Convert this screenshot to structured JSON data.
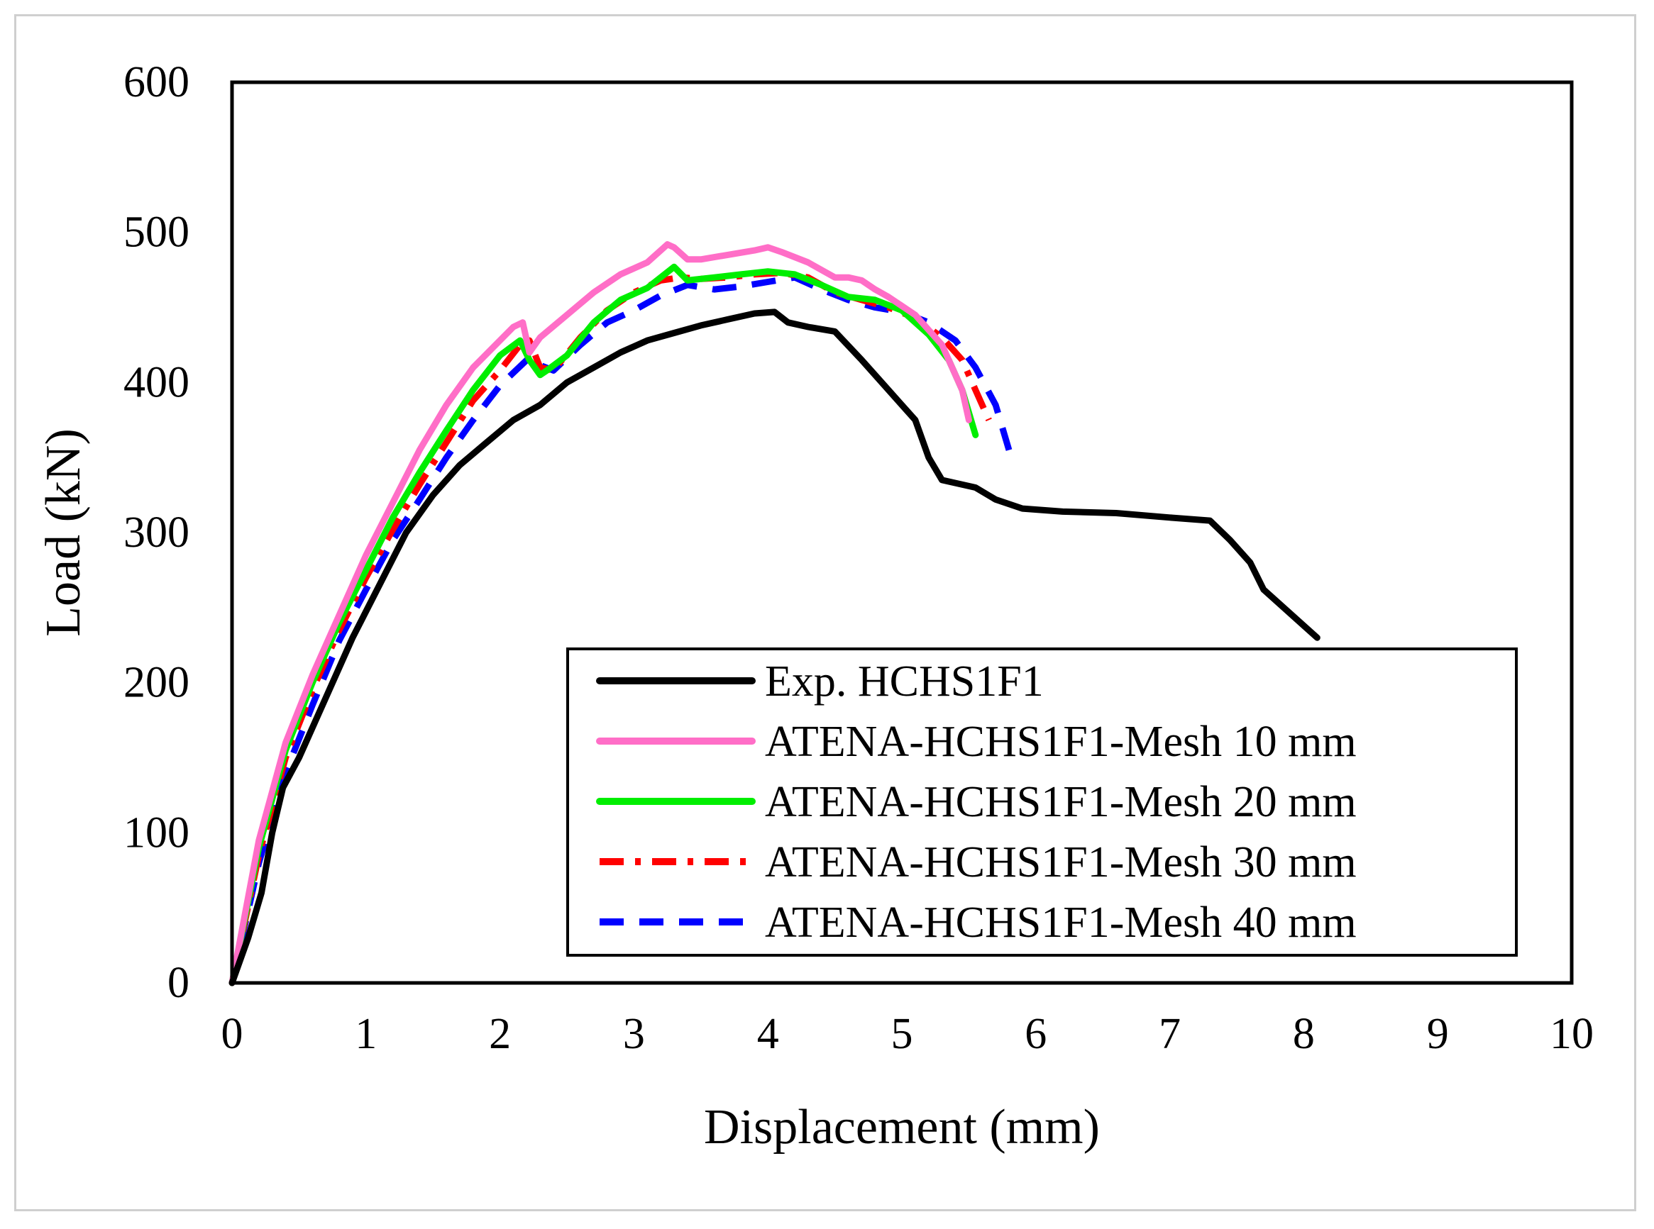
{
  "chart_data": {
    "type": "line",
    "title": "",
    "xlabel": "Displacement (mm)",
    "ylabel": "Load (kN)",
    "xlim": [
      0,
      10
    ],
    "ylim": [
      0,
      600
    ],
    "xticks": [
      0,
      1,
      2,
      3,
      4,
      5,
      6,
      7,
      8,
      9,
      10
    ],
    "yticks": [
      0,
      100,
      200,
      300,
      400,
      500,
      600
    ],
    "grid": false,
    "legend_position": "bottom-right",
    "series": [
      {
        "name": "Exp. HCHS1F1",
        "color": "#000000",
        "style": "solid",
        "x": [
          0,
          0.12,
          0.22,
          0.3,
          0.38,
          0.5,
          0.7,
          0.9,
          1.1,
          1.3,
          1.5,
          1.7,
          1.9,
          2.1,
          2.3,
          2.5,
          2.7,
          2.9,
          3.1,
          3.3,
          3.5,
          3.7,
          3.9,
          4.05,
          4.15,
          4.3,
          4.5,
          4.7,
          4.9,
          5.1,
          5.2,
          5.3,
          5.4,
          5.55,
          5.7,
          5.9,
          6.2,
          6.6,
          7.0,
          7.3,
          7.45,
          7.6,
          7.7,
          8.1
        ],
        "y": [
          0,
          30,
          60,
          100,
          130,
          150,
          190,
          230,
          265,
          300,
          325,
          345,
          360,
          375,
          385,
          400,
          410,
          420,
          428,
          433,
          438,
          442,
          446,
          447,
          440,
          437,
          434,
          415,
          395,
          375,
          350,
          335,
          333,
          330,
          322,
          316,
          314,
          313,
          310,
          308,
          295,
          280,
          262,
          230
        ]
      },
      {
        "name": "ATENA-HCHS1F1-Mesh 10 mm",
        "color": "#ff6ec7",
        "style": "solid",
        "x": [
          0,
          0.2,
          0.4,
          0.6,
          0.8,
          1.0,
          1.2,
          1.4,
          1.6,
          1.8,
          2.0,
          2.1,
          2.17,
          2.22,
          2.3,
          2.5,
          2.7,
          2.9,
          3.1,
          3.25,
          3.3,
          3.4,
          3.5,
          3.7,
          3.9,
          4.0,
          4.1,
          4.3,
          4.5,
          4.6,
          4.7,
          4.8,
          4.9,
          5.1,
          5.3,
          5.45,
          5.5
        ],
        "y": [
          0,
          95,
          160,
          205,
          245,
          285,
          320,
          355,
          385,
          410,
          428,
          437,
          440,
          420,
          430,
          445,
          460,
          472,
          480,
          492,
          490,
          482,
          482,
          485,
          488,
          490,
          487,
          480,
          470,
          470,
          468,
          462,
          457,
          445,
          425,
          395,
          375
        ]
      },
      {
        "name": "ATENA-HCHS1F1-Mesh 20 mm",
        "color": "#00ee00",
        "style": "solid",
        "x": [
          0,
          0.2,
          0.4,
          0.6,
          0.8,
          1.0,
          1.2,
          1.4,
          1.6,
          1.8,
          2.0,
          2.15,
          2.22,
          2.3,
          2.35,
          2.5,
          2.7,
          2.9,
          3.1,
          3.3,
          3.4,
          3.6,
          3.8,
          4.0,
          4.2,
          4.4,
          4.6,
          4.8,
          5.0,
          5.2,
          5.35,
          5.45,
          5.55
        ],
        "y": [
          0,
          90,
          155,
          200,
          240,
          275,
          310,
          340,
          368,
          395,
          418,
          428,
          415,
          405,
          408,
          418,
          440,
          455,
          463,
          477,
          468,
          470,
          472,
          474,
          472,
          465,
          457,
          455,
          448,
          432,
          415,
          395,
          365
        ]
      },
      {
        "name": "ATENA-HCHS1F1-Mesh 30 mm",
        "color": "#ff0000",
        "style": "dashdot",
        "x": [
          0,
          0.2,
          0.4,
          0.6,
          0.8,
          1.0,
          1.2,
          1.4,
          1.6,
          1.8,
          2.0,
          2.15,
          2.22,
          2.3,
          2.4,
          2.6,
          2.8,
          3.0,
          3.2,
          3.35,
          3.5,
          3.7,
          3.9,
          4.1,
          4.3,
          4.5,
          4.7,
          4.9,
          5.1,
          5.3,
          5.45,
          5.55,
          5.65
        ],
        "y": [
          0,
          85,
          150,
          195,
          235,
          270,
          302,
          332,
          360,
          388,
          408,
          425,
          428,
          410,
          408,
          430,
          448,
          460,
          468,
          470,
          469,
          470,
          472,
          473,
          470,
          460,
          455,
          450,
          443,
          430,
          415,
          395,
          375
        ]
      },
      {
        "name": "ATENA-HCHS1F1-Mesh 40 mm",
        "color": "#0000ff",
        "style": "dashed",
        "x": [
          0,
          0.2,
          0.4,
          0.6,
          0.8,
          1.0,
          1.2,
          1.4,
          1.6,
          1.8,
          2.0,
          2.2,
          2.4,
          2.6,
          2.8,
          3.0,
          3.2,
          3.4,
          3.6,
          3.8,
          4.0,
          4.2,
          4.4,
          4.6,
          4.8,
          5.0,
          5.2,
          5.4,
          5.55,
          5.7,
          5.8
        ],
        "y": [
          0,
          80,
          140,
          185,
          228,
          262,
          295,
          322,
          350,
          375,
          398,
          415,
          408,
          425,
          440,
          448,
          458,
          465,
          462,
          464,
          467,
          470,
          462,
          455,
          450,
          447,
          440,
          428,
          410,
          385,
          355
        ]
      }
    ]
  }
}
